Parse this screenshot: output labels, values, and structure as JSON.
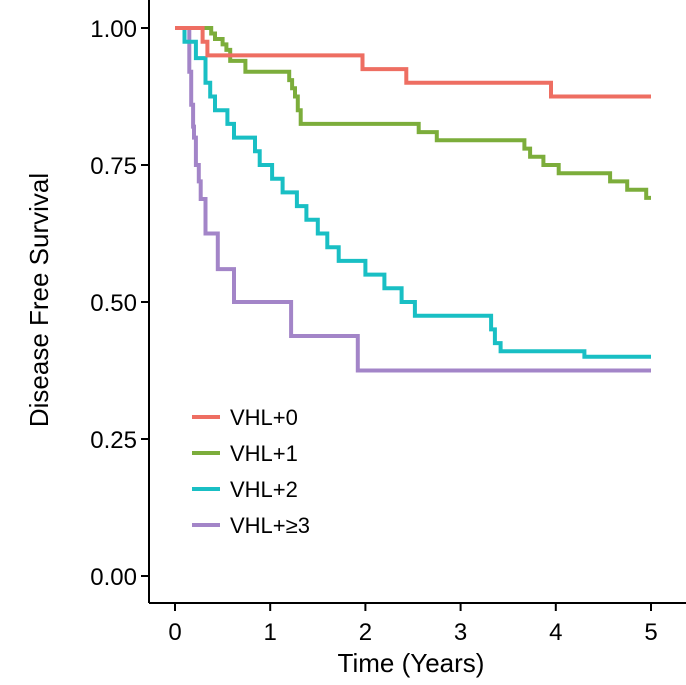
{
  "chart_data": {
    "type": "line",
    "subtype": "kaplan-meier step",
    "title": "",
    "xlabel": "Time (Years)",
    "ylabel": "Disease Free Survival",
    "xlim": [
      0,
      5
    ],
    "ylim": [
      0,
      1
    ],
    "x_ticks": [
      0,
      1,
      2,
      3,
      4,
      5
    ],
    "x_tick_labels": [
      "0",
      "1",
      "2",
      "3",
      "4",
      "5"
    ],
    "y_ticks": [
      0,
      0.25,
      0.5,
      0.75,
      1.0
    ],
    "y_tick_labels": [
      "0.00",
      "0.25",
      "0.50",
      "0.75",
      "1.00"
    ],
    "grid": false,
    "legend_position": "lower-left",
    "series": [
      {
        "name": "VHL+0",
        "color": "#ee6e62",
        "x": [
          0,
          0.29,
          0.29,
          0.34,
          0.34,
          1.97,
          1.97,
          2.43,
          2.43,
          3.95,
          3.95,
          5.0
        ],
        "y": [
          1.0,
          1.0,
          0.975,
          0.975,
          0.95,
          0.95,
          0.925,
          0.925,
          0.9,
          0.9,
          0.875,
          0.875
        ]
      },
      {
        "name": "VHL+1",
        "color": "#7cad3b",
        "x": [
          0,
          0.38,
          0.38,
          0.42,
          0.42,
          0.5,
          0.5,
          0.54,
          0.54,
          0.58,
          0.58,
          0.74,
          0.74,
          1.2,
          1.2,
          1.23,
          1.23,
          1.26,
          1.26,
          1.29,
          1.29,
          1.32,
          1.32,
          2.56,
          2.56,
          2.75,
          2.75,
          3.67,
          3.67,
          3.73,
          3.73,
          3.87,
          3.87,
          4.03,
          4.03,
          4.57,
          4.57,
          4.75,
          4.75,
          4.95,
          4.95,
          5.0
        ],
        "y": [
          1.0,
          1.0,
          0.99,
          0.99,
          0.98,
          0.98,
          0.97,
          0.97,
          0.96,
          0.96,
          0.94,
          0.94,
          0.92,
          0.92,
          0.905,
          0.905,
          0.89,
          0.89,
          0.875,
          0.875,
          0.85,
          0.85,
          0.825,
          0.825,
          0.81,
          0.81,
          0.795,
          0.795,
          0.78,
          0.78,
          0.765,
          0.765,
          0.75,
          0.75,
          0.735,
          0.735,
          0.72,
          0.72,
          0.705,
          0.705,
          0.69,
          0.69
        ]
      },
      {
        "name": "VHL+2",
        "color": "#19bfc4",
        "x": [
          0,
          0.1,
          0.1,
          0.22,
          0.22,
          0.32,
          0.32,
          0.37,
          0.37,
          0.42,
          0.42,
          0.55,
          0.55,
          0.62,
          0.62,
          0.84,
          0.84,
          0.89,
          0.89,
          1.02,
          1.02,
          1.13,
          1.13,
          1.28,
          1.28,
          1.38,
          1.38,
          1.5,
          1.5,
          1.6,
          1.6,
          1.72,
          1.72,
          2.0,
          2.0,
          2.2,
          2.2,
          2.38,
          2.38,
          2.52,
          2.52,
          3.32,
          3.32,
          3.36,
          3.36,
          3.42,
          3.42,
          4.3,
          4.3,
          5.0
        ],
        "y": [
          1.0,
          1.0,
          0.975,
          0.975,
          0.945,
          0.945,
          0.9,
          0.9,
          0.875,
          0.875,
          0.85,
          0.85,
          0.825,
          0.825,
          0.8,
          0.8,
          0.775,
          0.775,
          0.75,
          0.75,
          0.725,
          0.725,
          0.7,
          0.7,
          0.675,
          0.675,
          0.65,
          0.65,
          0.625,
          0.625,
          0.6,
          0.6,
          0.575,
          0.575,
          0.55,
          0.55,
          0.525,
          0.525,
          0.5,
          0.5,
          0.475,
          0.475,
          0.45,
          0.45,
          0.425,
          0.425,
          0.41,
          0.41,
          0.4,
          0.4
        ]
      },
      {
        "name": "VHL+≥3",
        "color": "#a385c8",
        "x": [
          0,
          0.15,
          0.15,
          0.17,
          0.17,
          0.19,
          0.19,
          0.2,
          0.2,
          0.22,
          0.22,
          0.25,
          0.25,
          0.27,
          0.27,
          0.32,
          0.32,
          0.45,
          0.45,
          0.62,
          0.62,
          1.22,
          1.22,
          1.92,
          1.92,
          2.02,
          2.02,
          5.0
        ],
        "y": [
          1.0,
          1.0,
          0.92,
          0.92,
          0.86,
          0.86,
          0.82,
          0.82,
          0.8,
          0.8,
          0.75,
          0.75,
          0.72,
          0.72,
          0.688,
          0.688,
          0.625,
          0.625,
          0.56,
          0.56,
          0.5,
          0.5,
          0.438,
          0.438,
          0.375,
          0.375,
          0.375,
          0.375
        ]
      }
    ]
  }
}
